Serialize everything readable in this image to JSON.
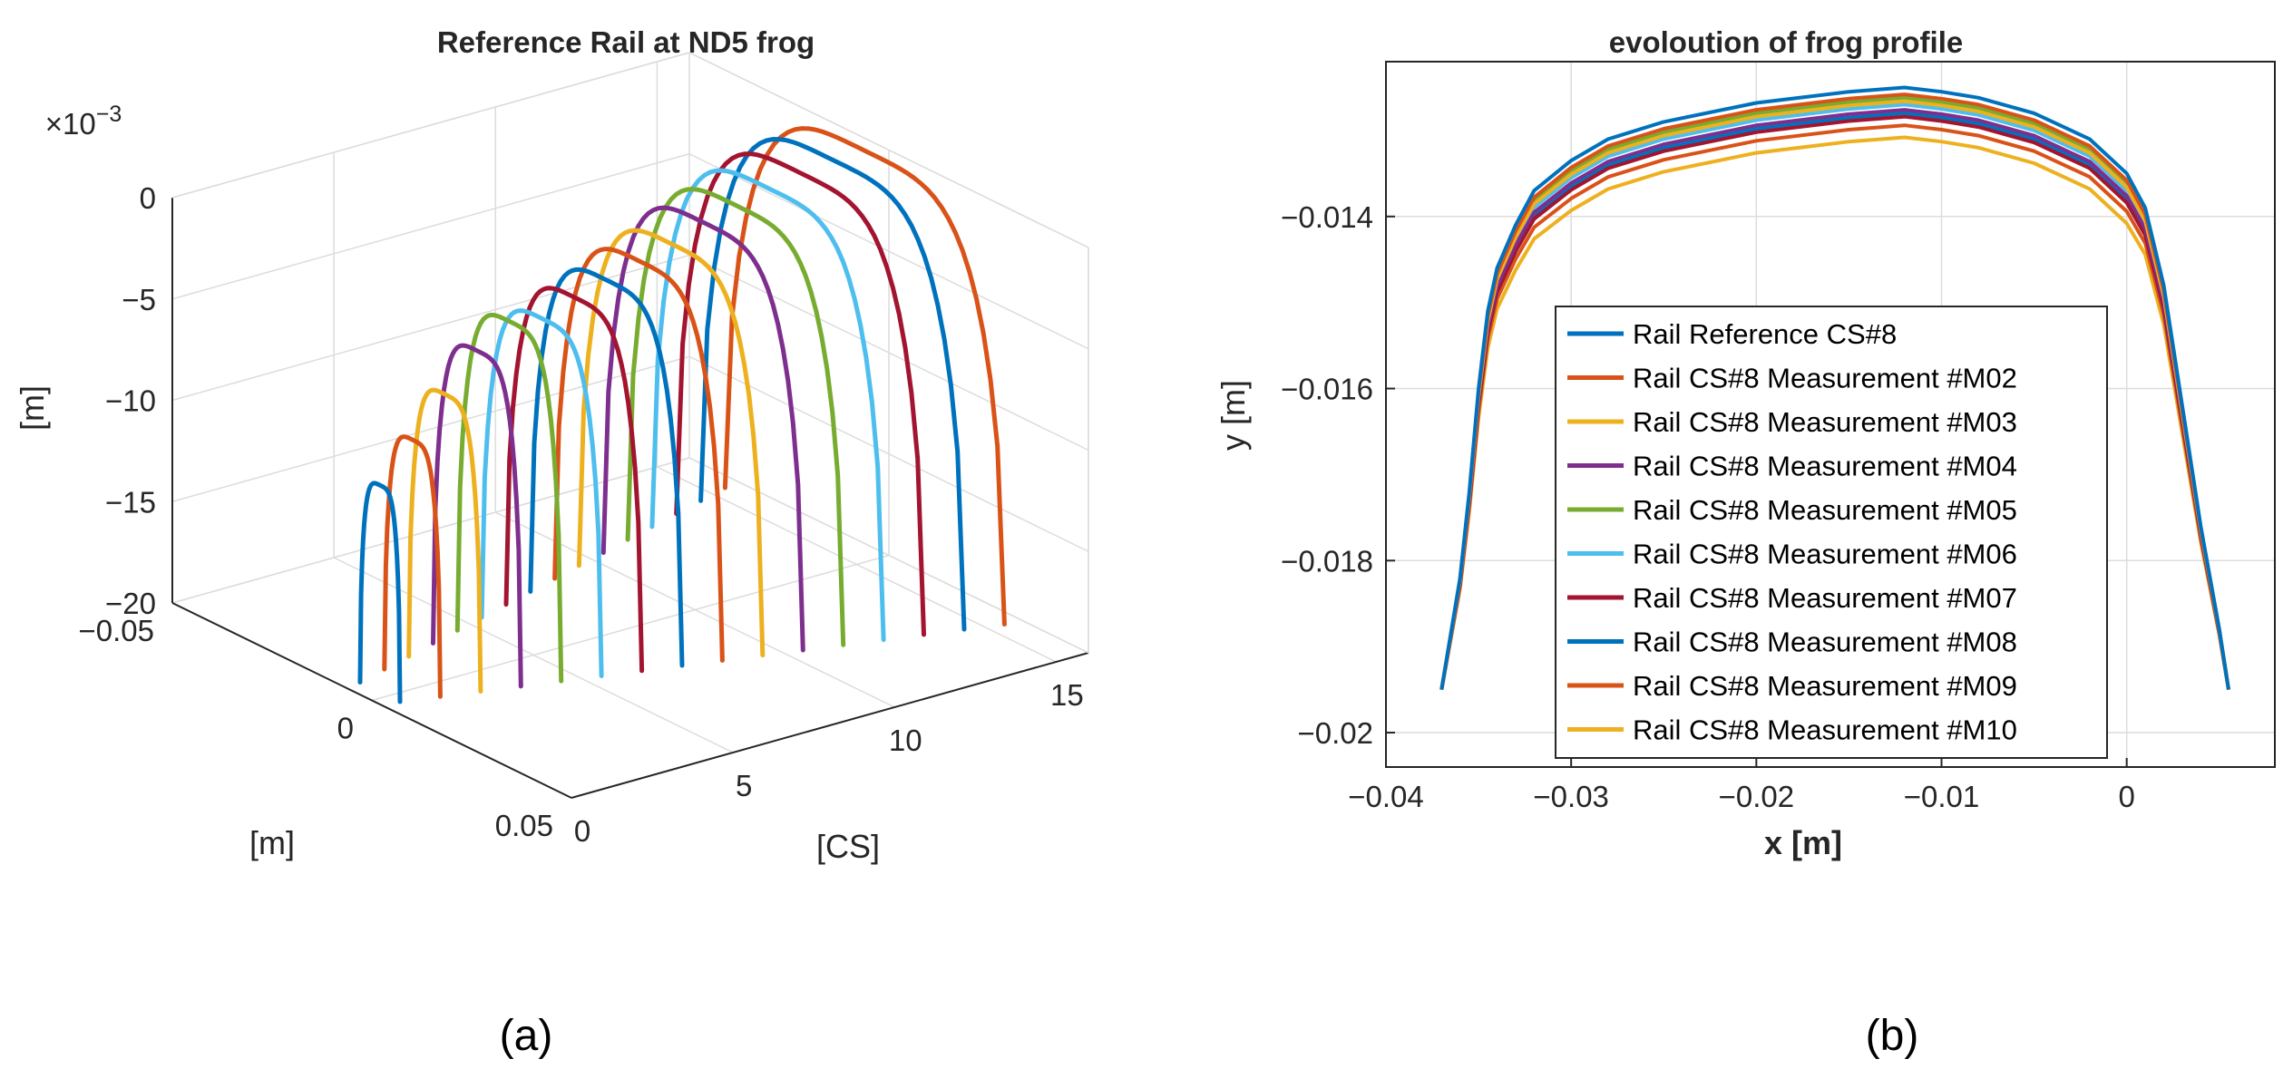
{
  "colors": {
    "palette": [
      "#0072BD",
      "#D95319",
      "#EDB120",
      "#7E2F8E",
      "#77AC30",
      "#4DBEEE",
      "#A2142F"
    ],
    "axis": "#262626",
    "grid": "#DCDCDC"
  },
  "panels": {
    "a": "(a)",
    "b": "(b)"
  },
  "chart_data": [
    {
      "type": "line3d",
      "title": "Reference Rail at ND5 frog",
      "exponent_base": "×10",
      "exponent_power": "−3",
      "zlabel": "[m]",
      "ylabel": "[m]",
      "xlabel": "[CS]",
      "z_ticks": [
        "0",
        "−5",
        "−10",
        "−15",
        "−20"
      ],
      "z_tick_values": [
        0,
        -5,
        -10,
        -15,
        -20
      ],
      "y_ticks": [
        "−0.05",
        "0",
        "0.05"
      ],
      "y_tick_values": [
        -0.05,
        0,
        0.05
      ],
      "x_ticks": [
        "0",
        "5",
        "10",
        "15"
      ],
      "x_tick_values": [
        0,
        5,
        10,
        15
      ],
      "xlim": [
        0,
        16
      ],
      "ylim": [
        -0.05,
        0.05
      ],
      "zlim": [
        -20,
        0
      ],
      "sections": [
        1,
        2,
        3,
        4,
        5,
        6,
        7,
        8,
        9,
        10,
        11,
        12,
        13,
        14,
        15,
        16
      ],
      "profile_half_width": [
        0.005,
        0.007,
        0.009,
        0.011,
        0.013,
        0.015,
        0.017,
        0.019,
        0.021,
        0.023,
        0.025,
        0.027,
        0.029,
        0.031,
        0.033,
        0.035
      ],
      "profile_top": [
        -9.8,
        -8.0,
        -6.2,
        -4.5,
        -3.5,
        -3.8,
        -3.2,
        -2.8,
        -2.3,
        -1.9,
        -1.3,
        -0.9,
        -0.5,
        -0.2,
        0.0,
        0.0
      ],
      "profile_bottom": [
        -20,
        -20,
        -20,
        -20,
        -20,
        -20,
        -20,
        -20,
        -20,
        -20,
        -20,
        -20,
        -20,
        -20,
        -20,
        -20
      ]
    },
    {
      "type": "line",
      "title": "evoloution of frog profile",
      "xlabel": "x  [m]",
      "ylabel": "y [m]",
      "xlim": [
        -0.04,
        0.008
      ],
      "ylim": [
        -0.0204,
        -0.0122
      ],
      "x_ticks": [
        "−0.04",
        "−0.03",
        "−0.02",
        "−0.01",
        "0"
      ],
      "x_tick_values": [
        -0.04,
        -0.03,
        -0.02,
        -0.01,
        0
      ],
      "y_ticks": [
        "−0.014",
        "−0.016",
        "−0.018",
        "−0.02"
      ],
      "y_tick_values": [
        -0.014,
        -0.016,
        -0.018,
        -0.02
      ],
      "base_profile": {
        "x": [
          -0.037,
          -0.036,
          -0.0355,
          -0.035,
          -0.0345,
          -0.034,
          -0.033,
          -0.032,
          -0.03,
          -0.028,
          -0.025,
          -0.02,
          -0.015,
          -0.012,
          -0.01,
          -0.008,
          -0.005,
          -0.002,
          0.0,
          0.001,
          0.002,
          0.003,
          0.004,
          0.005,
          0.0055
        ],
        "y": [
          -0.0195,
          -0.0182,
          -0.0172,
          -0.016,
          -0.0151,
          -0.0146,
          -0.0141,
          -0.0137,
          -0.01335,
          -0.0131,
          -0.0129,
          -0.01268,
          -0.01255,
          -0.0125,
          -0.01255,
          -0.01262,
          -0.0128,
          -0.0131,
          -0.0135,
          -0.0139,
          -0.0148,
          -0.0162,
          -0.0176,
          -0.0188,
          -0.0195
        ]
      },
      "series": [
        {
          "name": "Rail Reference CS#8",
          "color": "#0072BD",
          "offset": 0.0
        },
        {
          "name": "Rail CS#8 Measurement #M02",
          "color": "#D95319",
          "offset": 8e-05
        },
        {
          "name": "Rail CS#8 Measurement #M03",
          "color": "#EDB120",
          "offset": 0.00016
        },
        {
          "name": "Rail CS#8 Measurement #M04",
          "color": "#7E2F8E",
          "offset": 0.00026
        },
        {
          "name": "Rail CS#8 Measurement #M05",
          "color": "#77AC30",
          "offset": 0.00012
        },
        {
          "name": "Rail CS#8 Measurement #M06",
          "color": "#4DBEEE",
          "offset": 0.0002
        },
        {
          "name": "Rail CS#8 Measurement #M07",
          "color": "#A2142F",
          "offset": 0.00034
        },
        {
          "name": "Rail CS#8 Measurement #M08",
          "color": "#0072BD",
          "offset": 0.0003
        },
        {
          "name": "Rail CS#8 Measurement #M09",
          "color": "#D95319",
          "offset": 0.00044
        },
        {
          "name": "Rail CS#8 Measurement #M10",
          "color": "#EDB120",
          "offset": 0.00058
        }
      ]
    }
  ]
}
